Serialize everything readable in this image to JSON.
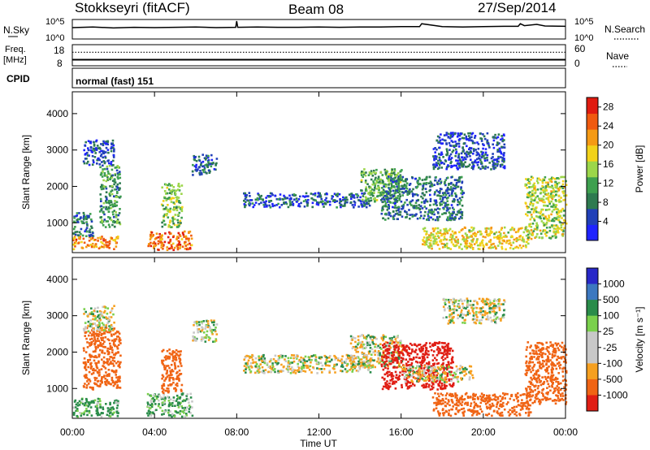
{
  "header": {
    "station": "Stokkseyri (fitACF)",
    "beam": "Beam 08",
    "date": "27/Sep/2014"
  },
  "top_panels": {
    "nsky_label": "N.Sky",
    "nsky_ticks": [
      "10^5",
      "10^0"
    ],
    "nsearch_label": "N.Search",
    "nsearch_ticks": [
      "10^5",
      "10^0"
    ],
    "freq_label_1": "Freq.",
    "freq_label_2": "[MHz]",
    "freq_ticks": [
      "18",
      "8"
    ],
    "nave_label": "Nave",
    "nave_ticks": [
      "60",
      "0"
    ],
    "cpid_label": "CPID",
    "cpid_value": "normal (fast) 151"
  },
  "colors": {
    "power_scale": [
      "#1f23ff",
      "#2140b8",
      "#2e7a50",
      "#3ea04f",
      "#9cd64a",
      "#f2d21a",
      "#f59a14",
      "#f05a0f",
      "#e01b10"
    ],
    "velocity_scale": [
      "#2828c8",
      "#3c78c0",
      "#2a8c4a",
      "#7ad04c",
      "#c8c8c8",
      "#c8c8c8",
      "#f6a020",
      "#f06414",
      "#e01e14"
    ]
  },
  "chart_data": [
    {
      "type": "line",
      "panel": "N.Sky / N.Search",
      "x": [
        0,
        1,
        2,
        3,
        4,
        5,
        6,
        7,
        7.95,
        8,
        8.05,
        9,
        10,
        11,
        12,
        13,
        14,
        15,
        16,
        16.9,
        17,
        18,
        19,
        20,
        21,
        21.7,
        21.8,
        22,
        22.6,
        23,
        24
      ],
      "y_log": [
        3.0,
        3.2,
        2.9,
        3.1,
        3.0,
        3.1,
        3.2,
        3.0,
        3.1,
        5.0,
        3.1,
        3.2,
        3.1,
        3.1,
        3.2,
        3.1,
        3.2,
        3.2,
        3.3,
        3.3,
        4.2,
        3.3,
        3.2,
        3.3,
        3.4,
        3.4,
        4.2,
        3.6,
        4.0,
        3.5,
        3.4
      ],
      "ylim": [
        0,
        5
      ]
    },
    {
      "type": "line",
      "panel": "Freq. [MHz] / Nave",
      "x": [
        0,
        24
      ],
      "freq_mhz": [
        10.5,
        10.5
      ],
      "nave": [
        40,
        40
      ],
      "freq_ylim": [
        8,
        18
      ],
      "nave_ylim": [
        0,
        60
      ]
    },
    {
      "type": "heatmap",
      "panel": "Power",
      "xlabel": "",
      "ylabel": "Slant Range [km]",
      "xlim": [
        0,
        24
      ],
      "ylim": [
        180,
        4600
      ],
      "x_ticks": [
        "00:00",
        "04:00",
        "08:00",
        "12:00",
        "16:00",
        "20:00",
        "00:00"
      ],
      "y_ticks": [
        1000,
        2000,
        3000,
        4000
      ],
      "colorbar_label": "Power [dB]",
      "colorbar_ticks": [
        4,
        8,
        12,
        16,
        20,
        24,
        28
      ],
      "colorbar_range": [
        0,
        30
      ],
      "regions": [
        {
          "t0": 0.0,
          "t1": 2.2,
          "r0": 300,
          "r1": 650,
          "value": 22
        },
        {
          "t0": 0.0,
          "t1": 1.0,
          "r0": 650,
          "r1": 1300,
          "value": 8
        },
        {
          "t0": 1.3,
          "t1": 2.3,
          "r0": 900,
          "r1": 2600,
          "value": 10
        },
        {
          "t0": 0.5,
          "t1": 2.0,
          "r0": 2600,
          "r1": 3300,
          "value": 5
        },
        {
          "t0": 3.6,
          "t1": 5.8,
          "r0": 280,
          "r1": 800,
          "value": 24
        },
        {
          "t0": 4.3,
          "t1": 5.3,
          "r0": 900,
          "r1": 2100,
          "value": 14
        },
        {
          "t0": 5.8,
          "t1": 7.0,
          "r0": 2300,
          "r1": 2900,
          "value": 6
        },
        {
          "t0": 8.3,
          "t1": 14.5,
          "r0": 1450,
          "r1": 1850,
          "value": 6
        },
        {
          "t0": 14.0,
          "t1": 16.0,
          "r0": 1600,
          "r1": 2500,
          "value": 12
        },
        {
          "t0": 15.0,
          "t1": 19.0,
          "r0": 1100,
          "r1": 2300,
          "value": 8
        },
        {
          "t0": 17.0,
          "t1": 22.3,
          "r0": 300,
          "r1": 900,
          "value": 18
        },
        {
          "t0": 17.5,
          "t1": 21.0,
          "r0": 2500,
          "r1": 3500,
          "value": 5
        },
        {
          "t0": 22.0,
          "t1": 24.0,
          "r0": 600,
          "r1": 2300,
          "value": 16
        }
      ]
    },
    {
      "type": "heatmap",
      "panel": "Velocity",
      "xlabel": "Time UT",
      "ylabel": "Slant Range [km]",
      "xlim": [
        0,
        24
      ],
      "ylim": [
        180,
        4600
      ],
      "x_ticks": [
        "00:00",
        "04:00",
        "08:00",
        "12:00",
        "16:00",
        "20:00",
        "00:00"
      ],
      "y_ticks": [
        1000,
        2000,
        3000,
        4000
      ],
      "colorbar_label": "Velocity [m s⁻¹]",
      "colorbar_ticks": [
        1000,
        500,
        100,
        25,
        -25,
        -100,
        -500,
        -1000
      ],
      "regions": [
        {
          "t0": 0.0,
          "t1": 2.2,
          "r0": 250,
          "r1": 750,
          "value": 100
        },
        {
          "t0": 0.5,
          "t1": 2.3,
          "r0": 1000,
          "r1": 2700,
          "value": -300
        },
        {
          "t0": 0.5,
          "t1": 2.0,
          "r0": 2600,
          "r1": 3300,
          "value": 0
        },
        {
          "t0": 3.6,
          "t1": 5.8,
          "r0": 250,
          "r1": 900,
          "value": 80
        },
        {
          "t0": 4.3,
          "t1": 5.3,
          "r0": 900,
          "r1": 2100,
          "value": -400
        },
        {
          "t0": 5.8,
          "t1": 7.0,
          "r0": 2300,
          "r1": 2900,
          "value": 0
        },
        {
          "t0": 8.3,
          "t1": 14.5,
          "r0": 1450,
          "r1": 1950,
          "value": 0
        },
        {
          "t0": 13.5,
          "t1": 16.0,
          "r0": 1600,
          "r1": 2500,
          "value": 0
        },
        {
          "t0": 15.0,
          "t1": 18.5,
          "r0": 1000,
          "r1": 2300,
          "value": -700
        },
        {
          "t0": 16.0,
          "t1": 19.5,
          "r0": 1200,
          "r1": 1650,
          "value": 0
        },
        {
          "t0": 17.5,
          "t1": 22.3,
          "r0": 280,
          "r1": 900,
          "value": -300
        },
        {
          "t0": 18.0,
          "t1": 21.0,
          "r0": 2800,
          "r1": 3500,
          "value": 0
        },
        {
          "t0": 22.0,
          "t1": 24.0,
          "r0": 600,
          "r1": 2300,
          "value": -300
        }
      ]
    }
  ]
}
